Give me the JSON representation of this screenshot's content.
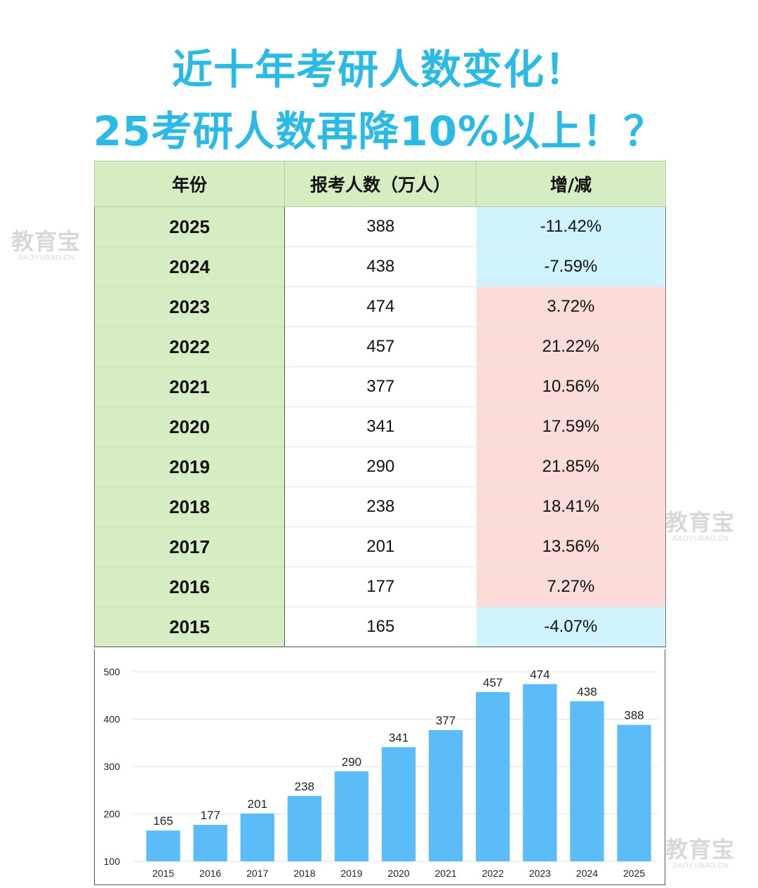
{
  "title_line1": "近十年考研人数变化！",
  "title_line2": "25考研人数再降10%以上！？",
  "watermark": {
    "main": "教育宝",
    "sub": "JIAOYUBAO.CN"
  },
  "table": {
    "headers": [
      "年份",
      "报考人数（万人）",
      "增/减"
    ],
    "rows": [
      {
        "year": "2025",
        "count": "388",
        "change": "-11.42%",
        "sign": "neg"
      },
      {
        "year": "2024",
        "count": "438",
        "change": "-7.59%",
        "sign": "neg"
      },
      {
        "year": "2023",
        "count": "474",
        "change": "3.72%",
        "sign": "pos"
      },
      {
        "year": "2022",
        "count": "457",
        "change": "21.22%",
        "sign": "pos"
      },
      {
        "year": "2021",
        "count": "377",
        "change": "10.56%",
        "sign": "pos"
      },
      {
        "year": "2020",
        "count": "341",
        "change": "17.59%",
        "sign": "pos"
      },
      {
        "year": "2019",
        "count": "290",
        "change": "21.85%",
        "sign": "pos"
      },
      {
        "year": "2018",
        "count": "238",
        "change": "18.41%",
        "sign": "pos"
      },
      {
        "year": "2017",
        "count": "201",
        "change": "13.56%",
        "sign": "pos"
      },
      {
        "year": "2016",
        "count": "177",
        "change": "7.27%",
        "sign": "pos"
      },
      {
        "year": "2015",
        "count": "165",
        "change": "-4.07%",
        "sign": "neg"
      }
    ],
    "colors": {
      "year_bg": "#d6edc4",
      "negative_bg": "#cff2fb",
      "positive_bg": "#fcdcd8"
    }
  },
  "chart_data": {
    "type": "bar",
    "categories": [
      "2015",
      "2016",
      "2017",
      "2018",
      "2019",
      "2020",
      "2021",
      "2022",
      "2023",
      "2024",
      "2025"
    ],
    "values": [
      165,
      177,
      201,
      238,
      290,
      341,
      377,
      457,
      474,
      438,
      388
    ],
    "ylim": [
      100,
      500
    ],
    "yticks": [
      100,
      200,
      300,
      400,
      500
    ],
    "grid": true,
    "bar_color": "#5bbcf7",
    "title": "",
    "xlabel": "",
    "ylabel": ""
  }
}
